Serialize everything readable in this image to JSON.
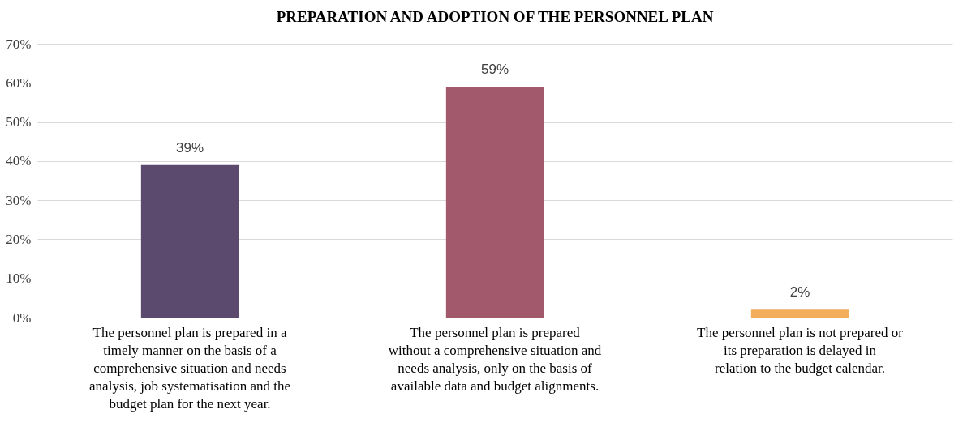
{
  "chart_data": {
    "type": "bar",
    "title": "PREPARATION AND ADOPTION OF THE PERSONNEL PLAN",
    "categories": [
      "The personnel plan is prepared in a timely manner on the basis of a comprehensive situation and needs analysis, job systematisation and the budget plan for the next year.",
      "The personnel plan is prepared without a comprehensive situation and needs analysis, only on the basis of available data and budget alignments.",
      "The personnel plan is not prepared or its preparation is delayed in relation to the budget calendar."
    ],
    "values": [
      39,
      59,
      2
    ],
    "colors": [
      "#5c4a6e",
      "#a1596b",
      "#f2ae5b"
    ],
    "value_labels": [
      "39%",
      "59%",
      "2%"
    ],
    "ylim": [
      0,
      70
    ],
    "yticks": [
      {
        "value": 0,
        "label": "0%"
      },
      {
        "value": 10,
        "label": "10%"
      },
      {
        "value": 20,
        "label": "20%"
      },
      {
        "value": 30,
        "label": "30%"
      },
      {
        "value": 40,
        "label": "40%"
      },
      {
        "value": 50,
        "label": "50%"
      },
      {
        "value": 60,
        "label": "60%"
      },
      {
        "value": 70,
        "label": "70%"
      }
    ],
    "grid": "y"
  }
}
